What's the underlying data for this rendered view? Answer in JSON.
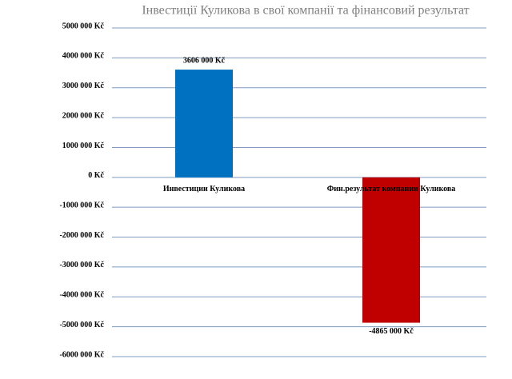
{
  "chart_data": {
    "type": "bar",
    "title": "Інвестиції Куликова в свої компанії та фінансовий результат",
    "categories": [
      "Инвестиции Куликова",
      "Фин.результат компании Куликова"
    ],
    "values": [
      3606000,
      -4865000
    ],
    "value_labels": [
      "3606 000 Kč",
      "-4865 000 Kč"
    ],
    "colors": [
      "#0070c0",
      "#c00000"
    ],
    "ylim": [
      -6000000,
      5000000
    ],
    "yticks": [
      {
        "value": -6000000,
        "label": "-6000 000 Kč"
      },
      {
        "value": -5000000,
        "label": "-5000 000 Kč"
      },
      {
        "value": -4000000,
        "label": "-4000 000 Kč"
      },
      {
        "value": -3000000,
        "label": "-3000 000 Kč"
      },
      {
        "value": -2000000,
        "label": "-2000 000 Kč"
      },
      {
        "value": -1000000,
        "label": "-1000 000 Kč"
      },
      {
        "value": 0,
        "label": "0 Kč"
      },
      {
        "value": 1000000,
        "label": "1000 000 Kč"
      },
      {
        "value": 2000000,
        "label": "2000 000 Kč"
      },
      {
        "value": 3000000,
        "label": "3000 000 Kč"
      },
      {
        "value": 4000000,
        "label": "4000 000 Kč"
      },
      {
        "value": 5000000,
        "label": "5000 000 Kč"
      }
    ],
    "grid": true
  }
}
